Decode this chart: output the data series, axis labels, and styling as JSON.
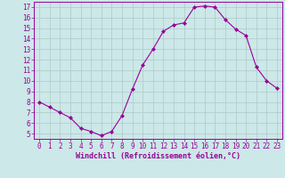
{
  "x": [
    0,
    1,
    2,
    3,
    4,
    5,
    6,
    7,
    8,
    9,
    10,
    11,
    12,
    13,
    14,
    15,
    16,
    17,
    18,
    19,
    20,
    21,
    22,
    23
  ],
  "y": [
    8.0,
    7.5,
    7.0,
    6.5,
    5.5,
    5.2,
    4.8,
    5.2,
    6.7,
    9.2,
    11.5,
    13.0,
    14.7,
    15.3,
    15.5,
    17.0,
    17.1,
    17.0,
    15.8,
    14.9,
    14.3,
    11.3,
    10.0,
    9.3
  ],
  "line_color": "#990099",
  "marker": "D",
  "marker_size": 2.0,
  "bg_color": "#cce8e8",
  "grid_color": "#b0c8c8",
  "xlabel": "Windchill (Refroidissement éolien,°C)",
  "xlabel_color": "#990099",
  "tick_color": "#990099",
  "spine_color": "#990099",
  "ylim": [
    4.5,
    17.5
  ],
  "xlim": [
    -0.5,
    23.5
  ],
  "yticks": [
    5,
    6,
    7,
    8,
    9,
    10,
    11,
    12,
    13,
    14,
    15,
    16,
    17
  ],
  "xticks": [
    0,
    1,
    2,
    3,
    4,
    5,
    6,
    7,
    8,
    9,
    10,
    11,
    12,
    13,
    14,
    15,
    16,
    17,
    18,
    19,
    20,
    21,
    22,
    23
  ],
  "tick_fontsize": 5.5,
  "xlabel_fontsize": 6.0
}
